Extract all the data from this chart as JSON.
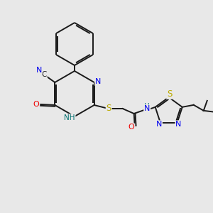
{
  "background_color": "#e8e8e8",
  "bond_color": "#1a1a1a",
  "atom_colors": {
    "N": "#0000ee",
    "O": "#ee0000",
    "S": "#bbaa00",
    "C": "#1a1a1a",
    "H": "#007070"
  },
  "figsize": [
    3.0,
    3.0
  ],
  "dpi": 100
}
